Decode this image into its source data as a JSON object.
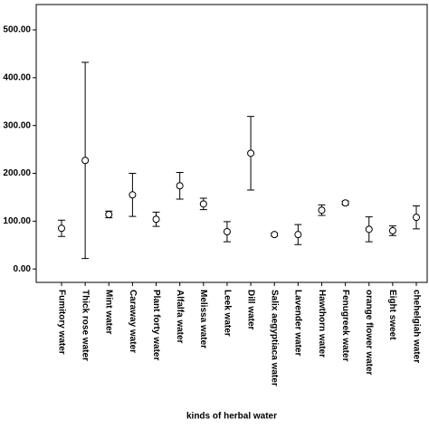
{
  "chart_data": {
    "type": "errorbar",
    "x_label": "kinds of herbal water",
    "categories": [
      "Fumitory water",
      "Thick rose water",
      "Mint water",
      "Caraway water",
      "Plant forty water",
      "Alfalfa water",
      "Melissa water",
      "Leek water",
      "Dill water",
      "Salix aegyptiaca water",
      "Lavender water",
      "Hawthorn water",
      "Fenugreek water",
      "orange flower water",
      "Eight sweet",
      "chehelgiah water"
    ],
    "values": [
      85,
      227,
      114,
      155,
      104,
      174,
      136,
      78,
      242,
      72,
      72,
      123,
      138,
      83,
      80,
      108
    ],
    "errors": [
      17,
      205,
      7,
      45,
      15,
      28,
      12,
      21,
      77,
      3,
      21,
      11,
      4,
      26,
      10,
      24
    ],
    "color": "#000000",
    "ylim": [
      -28,
      553
    ],
    "yticks": [
      {
        "value": 0,
        "label": "0.00"
      },
      {
        "value": 100,
        "label": "100.00"
      },
      {
        "value": 200,
        "label": "200.00"
      },
      {
        "value": 300,
        "label": "300.00"
      },
      {
        "value": 400,
        "label": "400.00"
      },
      {
        "value": 500,
        "label": "500.00"
      }
    ]
  }
}
